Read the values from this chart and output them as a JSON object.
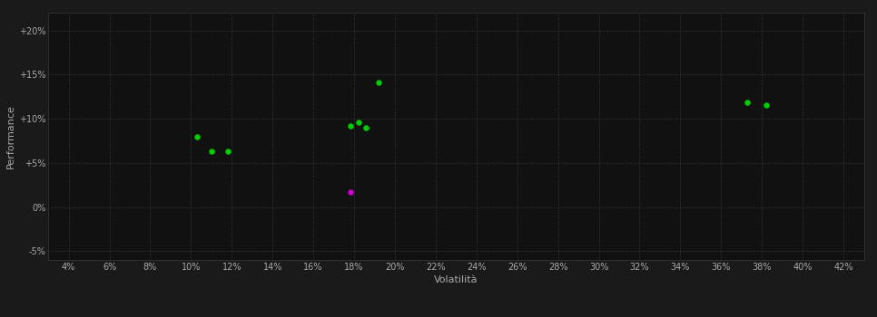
{
  "background_color": "#1a1a1a",
  "plot_bg_color": "#111111",
  "grid_color": "#3a3a3a",
  "text_color": "#aaaaaa",
  "xlabel": "Volatilità",
  "ylabel": "Performance",
  "xlim": [
    0.03,
    0.43
  ],
  "ylim": [
    -0.06,
    0.22
  ],
  "xticks": [
    0.04,
    0.06,
    0.08,
    0.1,
    0.12,
    0.14,
    0.16,
    0.18,
    0.2,
    0.22,
    0.24,
    0.26,
    0.28,
    0.3,
    0.32,
    0.34,
    0.36,
    0.38,
    0.4,
    0.42
  ],
  "yticks": [
    -0.05,
    0.0,
    0.05,
    0.1,
    0.15,
    0.2
  ],
  "green_points": [
    [
      0.103,
      0.079
    ],
    [
      0.11,
      0.063
    ],
    [
      0.118,
      0.063
    ],
    [
      0.178,
      0.092
    ],
    [
      0.182,
      0.096
    ],
    [
      0.186,
      0.09
    ],
    [
      0.192,
      0.141
    ],
    [
      0.373,
      0.118
    ],
    [
      0.382,
      0.115
    ]
  ],
  "magenta_points": [
    [
      0.178,
      0.017
    ]
  ],
  "green_color": "#00cc00",
  "magenta_color": "#cc00cc",
  "marker_size": 22
}
